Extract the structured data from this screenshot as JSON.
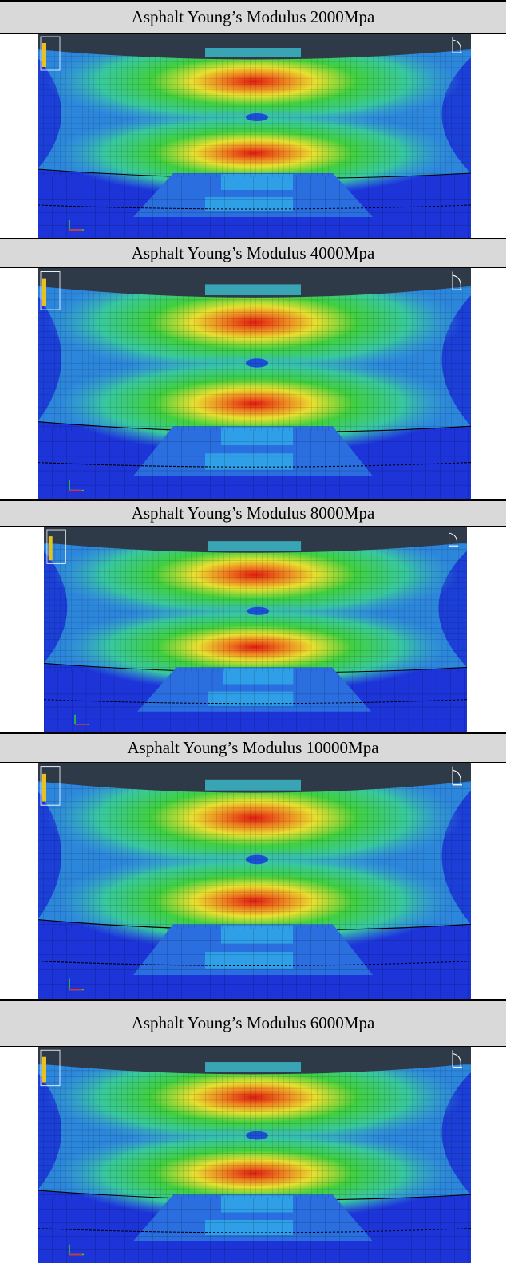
{
  "panels": [
    {
      "title": "Asphalt Young’s Modulus 2000Mpa"
    },
    {
      "title": "Asphalt Young’s Modulus 4000Mpa"
    },
    {
      "title": "Asphalt Young’s Modulus 8000Mpa"
    },
    {
      "title": "Asphalt Young’s Modulus 10000Mpa"
    },
    {
      "title": "Asphalt Young’s Modulus 6000Mpa"
    }
  ]
}
